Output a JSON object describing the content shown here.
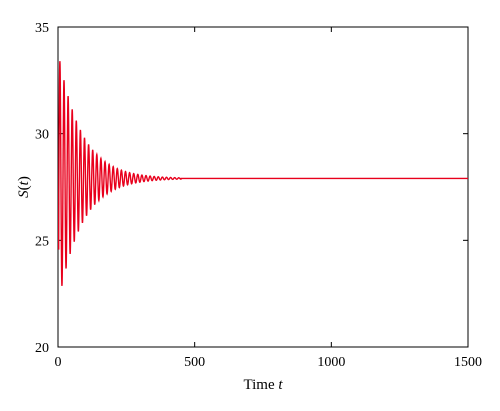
{
  "chart_data": {
    "type": "line",
    "title": "",
    "xlabel_prefix": "Time ",
    "xlabel_var": "t",
    "ylabel_prefix": "S(",
    "ylabel_var": "t",
    "ylabel_suffix": ")",
    "xlim": [
      0,
      1500
    ],
    "ylim": [
      20,
      35
    ],
    "xticks": [
      0,
      500,
      1000,
      1500
    ],
    "yticks": [
      20,
      25,
      30,
      35
    ],
    "grid": false,
    "legend": "none",
    "line_color": "#e8001c",
    "series": [
      {
        "equilibrium": 27.9,
        "initial_value": 24.6,
        "oscillation_period": 15,
        "first_peak": 33.4,
        "first_trough": 24.4,
        "settle_time": 450,
        "values_x": [
          0,
          7,
          15,
          22,
          30,
          37,
          45,
          52,
          60,
          67,
          75,
          82,
          90,
          97,
          105,
          120,
          135,
          150,
          180,
          210,
          240,
          270,
          300,
          350,
          400,
          450,
          500,
          1000,
          1500
        ],
        "values_y": [
          24.6,
          33.4,
          24.4,
          31.2,
          25.3,
          30.2,
          25.9,
          29.6,
          26.3,
          29.2,
          26.6,
          28.9,
          26.9,
          28.7,
          27.1,
          27.3,
          28.5,
          27.4,
          28.3,
          27.6,
          28.1,
          27.8,
          28.0,
          27.9,
          27.9,
          27.9,
          27.9,
          27.9,
          27.9
        ]
      }
    ]
  }
}
